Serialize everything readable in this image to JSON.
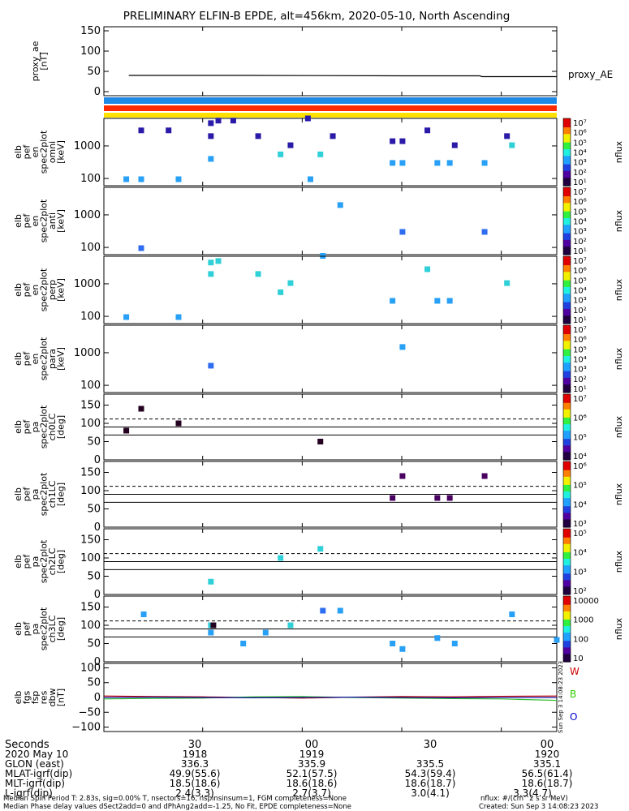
{
  "title": "PRELIMINARY ELFIN-B EPDE, alt=456km, 2020-05-10, North Ascending",
  "colors": {
    "bar_blue": "#1e88e5",
    "bar_red": "#ff2a00",
    "bar_yellow": "#ffe000",
    "W": "#cc0000",
    "B": "#33cc00",
    "O": "#0000cc"
  },
  "panels": [
    {
      "id": "proxy_ae",
      "ylabel": [
        "proxy_ae",
        "[nT]"
      ],
      "right_label": "proxy_AE",
      "yticks": [
        "150",
        "100",
        "50",
        "0"
      ]
    },
    {
      "id": "omni",
      "ylabel": [
        "elb",
        "pef",
        "en",
        "spec2plot",
        "omni",
        "[keV]"
      ],
      "yticks": [
        "1000",
        "100"
      ],
      "cbar_label": "nflux",
      "cbar_ticks": [
        "10⁷",
        "10⁶",
        "10⁵",
        "10⁴",
        "10³",
        "10²",
        "10¹"
      ]
    },
    {
      "id": "anti",
      "ylabel": [
        "elb",
        "pef",
        "en",
        "spec2plot",
        "anti",
        "[keV]"
      ],
      "yticks": [
        "1000",
        "100"
      ],
      "cbar_label": "nflux",
      "cbar_ticks": [
        "10⁷",
        "10⁶",
        "10⁵",
        "10⁴",
        "10³",
        "10²",
        "10¹"
      ]
    },
    {
      "id": "perp",
      "ylabel": [
        "elb",
        "pef",
        "en",
        "spec2plot",
        "perp",
        "[keV]"
      ],
      "yticks": [
        "1000",
        "100"
      ],
      "cbar_label": "nflux",
      "cbar_ticks": [
        "10⁷",
        "10⁶",
        "10⁵",
        "10⁴",
        "10³",
        "10²",
        "10¹"
      ]
    },
    {
      "id": "para",
      "ylabel": [
        "elb",
        "pef",
        "en",
        "spec2plot",
        "para",
        "[keV]"
      ],
      "yticks": [
        "1000",
        "100"
      ],
      "cbar_label": "nflux",
      "cbar_ticks": [
        "10⁷",
        "10⁶",
        "10⁵",
        "10⁴",
        "10³",
        "10²",
        "10¹"
      ]
    },
    {
      "id": "ch0LC",
      "ylabel": [
        "elb",
        "pef",
        "pa",
        "spec2plot",
        "ch0LC",
        "[deg]"
      ],
      "yticks": [
        "150",
        "100",
        "50",
        "0"
      ],
      "cbar_label": "nflux",
      "cbar_ticks": [
        "10⁷",
        "10⁶",
        "10⁵",
        "10⁴"
      ]
    },
    {
      "id": "ch1LC",
      "ylabel": [
        "elb",
        "pef",
        "pa",
        "spec2plot",
        "ch1LC",
        "[deg]"
      ],
      "yticks": [
        "150",
        "100",
        "50",
        "0"
      ],
      "cbar_label": "nflux",
      "cbar_ticks": [
        "10⁶",
        "10⁵",
        "10⁴",
        "10³"
      ]
    },
    {
      "id": "ch2LC",
      "ylabel": [
        "elb",
        "pef",
        "pa",
        "spec2plot",
        "ch2LC",
        "[deg]"
      ],
      "yticks": [
        "150",
        "100",
        "50",
        "0"
      ],
      "cbar_label": "nflux",
      "cbar_ticks": [
        "10⁵",
        "10⁴",
        "10³",
        "10²"
      ]
    },
    {
      "id": "ch3LC",
      "ylabel": [
        "elb",
        "pef",
        "pa",
        "spec2plot",
        "ch3LC",
        "[deg]"
      ],
      "yticks": [
        "150",
        "100",
        "50",
        "0"
      ],
      "cbar_label": "nflux",
      "cbar_ticks": [
        "10000",
        "1000",
        "100",
        "10"
      ]
    },
    {
      "id": "dbw",
      "ylabel": [
        "elb",
        "fgs",
        "fsp",
        "res",
        "dbw",
        "[nT]"
      ],
      "yticks": [
        "100",
        "50",
        "0",
        "−50",
        "−100"
      ],
      "legend": [
        "W",
        "B",
        "O"
      ]
    }
  ],
  "xaxis": {
    "row_labels": [
      "Seconds",
      "2020 May 10",
      "GLON (east)",
      "MLAT-igrf(dip)",
      "MLT-igrf(dip)",
      "L-igrf(dip)"
    ],
    "columns": [
      {
        "values": [
          "30",
          "1918",
          "336.3",
          "49.9(55.6)",
          "18.5(18.6)",
          "2.4(3.3)"
        ]
      },
      {
        "values": [
          "00",
          "1919",
          "335.9",
          "52.1(57.5)",
          "18.6(18.6)",
          "2.7(3.7)"
        ]
      },
      {
        "values": [
          "30",
          "",
          "335.5",
          "54.3(59.4)",
          "18.6(18.7)",
          "3.0(4.1)"
        ]
      },
      {
        "values": [
          "00",
          "1920",
          "335.1",
          "56.5(61.4)",
          "18.6(18.7)",
          "3.3(4.7)"
        ]
      }
    ]
  },
  "side_stamp": "Sun Sep  3 14:08:23 2023",
  "footer": {
    "line1": "Median Spin Period T: 2.83s, sig=0.00% T, nsectors=16, nspinsinsum=1, FGM completeness=None",
    "line2": "Median Phase delay values dSect2add=0 and dPhAng2add=-1.25, No Fit, EPDE completeness=None",
    "units": "nflux: #/(cm^2 s sr MeV)",
    "created": "Created: Sun Sep  3 14:08:23 2023"
  },
  "chart_data": [
    {
      "type": "line",
      "panel": "proxy_ae",
      "x_unit": "seconds since 19:17:00 UT",
      "ylim": [
        -10,
        160
      ],
      "series": [
        {
          "name": "proxy_AE",
          "x": [
            10,
            60,
            120,
            151,
            152,
            182
          ],
          "y": [
            40,
            40,
            39,
            39,
            37,
            37
          ]
        }
      ]
    },
    {
      "type": "heatmap",
      "panel": "omni",
      "yscale": "log",
      "ylim": [
        60,
        7000
      ],
      "points": [
        [
          15,
          3000,
          6
        ],
        [
          26,
          3000,
          6
        ],
        [
          43,
          5000,
          6
        ],
        [
          43,
          2000,
          6
        ],
        [
          43,
          400,
          4
        ],
        [
          46,
          6000,
          6
        ],
        [
          52,
          6000,
          6
        ],
        [
          62,
          2000,
          6
        ],
        [
          71,
          550,
          5
        ],
        [
          75,
          1050,
          6
        ],
        [
          82,
          7000,
          6
        ],
        [
          87,
          550,
          5
        ],
        [
          92,
          2000,
          6
        ],
        [
          116,
          1400,
          6
        ],
        [
          120,
          1400,
          6
        ],
        [
          116,
          300,
          4
        ],
        [
          120,
          300,
          4
        ],
        [
          130,
          3000,
          6
        ],
        [
          134,
          300,
          4
        ],
        [
          139,
          300,
          4
        ],
        [
          141,
          1050,
          6
        ],
        [
          153,
          300,
          4
        ],
        [
          162,
          2000,
          6
        ],
        [
          164,
          1050,
          5
        ],
        [
          9,
          95,
          4
        ],
        [
          15,
          95,
          4
        ],
        [
          30,
          95,
          4
        ],
        [
          83,
          95,
          4
        ]
      ]
    },
    {
      "type": "heatmap",
      "panel": "anti",
      "yscale": "log",
      "ylim": [
        60,
        7000
      ],
      "points": [
        [
          15,
          95,
          3
        ],
        [
          88,
          55,
          4
        ],
        [
          95,
          2000,
          4
        ],
        [
          120,
          300,
          3
        ],
        [
          153,
          300,
          3
        ]
      ]
    },
    {
      "type": "heatmap",
      "panel": "perp",
      "yscale": "log",
      "ylim": [
        60,
        7000
      ],
      "points": [
        [
          46,
          5000,
          5
        ],
        [
          43,
          4500,
          5
        ],
        [
          43,
          2000,
          5
        ],
        [
          62,
          2000,
          5
        ],
        [
          71,
          550,
          5
        ],
        [
          75,
          1050,
          5
        ],
        [
          130,
          2800,
          5
        ],
        [
          9,
          95,
          4
        ],
        [
          30,
          95,
          4
        ],
        [
          116,
          300,
          4
        ],
        [
          134,
          300,
          4
        ],
        [
          139,
          300,
          4
        ],
        [
          162,
          1050,
          5
        ]
      ]
    },
    {
      "type": "heatmap",
      "panel": "para",
      "yscale": "log",
      "ylim": [
        60,
        7000
      ],
      "points": [
        [
          43,
          400,
          3
        ],
        [
          120,
          1500,
          4
        ]
      ]
    },
    {
      "type": "heatmap",
      "panel": "ch0LC",
      "ylim": [
        0,
        180
      ],
      "points": [
        [
          9,
          80,
          6
        ],
        [
          15,
          140,
          6
        ],
        [
          30,
          100,
          6
        ],
        [
          87,
          50,
          6
        ]
      ],
      "lines": [
        {
          "y": 112,
          "style": "dashed"
        },
        {
          "y": 90
        },
        {
          "y": 68
        }
      ]
    },
    {
      "type": "heatmap",
      "panel": "ch1LC",
      "ylim": [
        0,
        180
      ],
      "points": [
        [
          120,
          140,
          5
        ],
        [
          153,
          140,
          5
        ],
        [
          116,
          80,
          5
        ],
        [
          134,
          80,
          5
        ],
        [
          139,
          80,
          5
        ]
      ],
      "lines": [
        {
          "y": 112,
          "style": "dashed"
        },
        {
          "y": 90
        },
        {
          "y": 68
        }
      ]
    },
    {
      "type": "heatmap",
      "panel": "ch2LC",
      "ylim": [
        0,
        180
      ],
      "points": [
        [
          71,
          100,
          5
        ],
        [
          87,
          125,
          5
        ],
        [
          43,
          35,
          5
        ]
      ],
      "lines": [
        {
          "y": 112,
          "style": "dashed"
        },
        {
          "y": 90
        },
        {
          "y": 68
        }
      ]
    },
    {
      "type": "heatmap",
      "panel": "ch3LC",
      "ylim": [
        0,
        180
      ],
      "points": [
        [
          16,
          130,
          4
        ],
        [
          43,
          100,
          5
        ],
        [
          44,
          100,
          6
        ],
        [
          43,
          80,
          4
        ],
        [
          56,
          50,
          4
        ],
        [
          65,
          80,
          4
        ],
        [
          75,
          100,
          5
        ],
        [
          88,
          140,
          3
        ],
        [
          95,
          140,
          4
        ],
        [
          116,
          50,
          4
        ],
        [
          120,
          35,
          4
        ],
        [
          134,
          65,
          4
        ],
        [
          141,
          50,
          4
        ],
        [
          164,
          130,
          4
        ],
        [
          182,
          60,
          4
        ]
      ],
      "lines": [
        {
          "y": 112,
          "style": "dashed"
        },
        {
          "y": 90
        },
        {
          "y": 68
        }
      ]
    },
    {
      "type": "line",
      "panel": "dbw",
      "ylim": [
        -115,
        115
      ],
      "series": [
        {
          "name": "W",
          "x": [
            0,
            20,
            40,
            60,
            80,
            100,
            120,
            140,
            160,
            182
          ],
          "y": [
            5,
            3,
            2,
            0,
            -2,
            1,
            3,
            2,
            4,
            5
          ]
        },
        {
          "name": "B",
          "x": [
            0,
            20,
            40,
            60,
            80,
            100,
            120,
            140,
            160,
            182
          ],
          "y": [
            -5,
            -3,
            -2,
            2,
            3,
            0,
            -2,
            -4,
            -5,
            -10
          ]
        },
        {
          "name": "O",
          "x": [
            0,
            20,
            40,
            60,
            80,
            100,
            120,
            140,
            160,
            182
          ],
          "y": [
            0,
            1,
            0,
            -1,
            0,
            1,
            0,
            -1,
            0,
            0
          ]
        }
      ]
    }
  ]
}
